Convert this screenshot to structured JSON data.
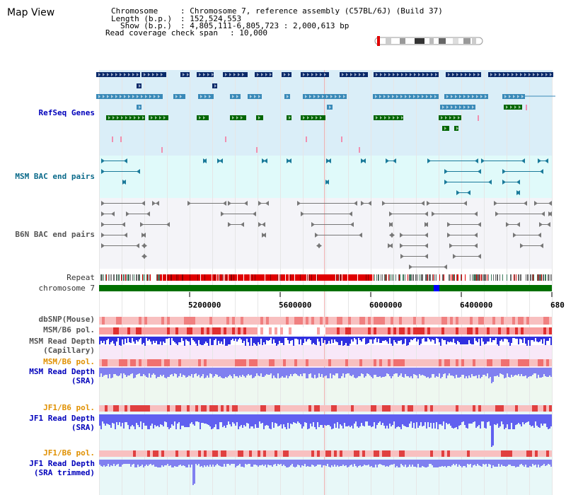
{
  "window": {
    "title": "Map View"
  },
  "info": {
    "chromosome_key": "Chromosome",
    "chromosome_value": ": Chromosome 7, reference assembly (C57BL/6J) (Build 37)",
    "length_key": "Length (b.p.)",
    "length_value": ": 152,524,553",
    "show_key": "Show (b.p.)",
    "show_value": ": 4,805,111-6,805,723 : 2,000,613 bp",
    "coverage_key": "Read coverage check span",
    "coverage_value": ": 10,000"
  },
  "tracks": {
    "refseq": "RefSeq Genes",
    "msm_bac": "MSM BAC end pairs",
    "b6n_bac": "B6N BAC end pairs",
    "repeat": "Repeat",
    "chromosome": "chromosome 7",
    "dbsnp": "dbSNP(Mouse)",
    "msm_b6_pol_1": "MSM/B6 pol.",
    "msm_depth_cap_1": "MSM Read Depth",
    "msm_depth_cap_2": "(Capillary)",
    "msm_b6_pol_2": "MSM/B6 pol.",
    "msm_depth_sra_1": "MSM Read Depth",
    "msm_depth_sra_2": "(SRA)",
    "jf1_pol_1": "JF1/B6 pol.",
    "jf1_depth_sra_1": "JF1 Read Depth",
    "jf1_depth_sra_2": "(SRA)",
    "jf1_pol_2": "JF1/B6 pol.",
    "jf1_depth_trim_1": "JF1 Read Depth",
    "jf1_depth_trim_2": "(SRA trimmed)"
  },
  "axis": {
    "ticks": [
      "5200000",
      "5600000",
      "6000000",
      "6400000",
      "680"
    ]
  },
  "colors": {
    "refseq_bg": "#daeef8",
    "msm_bg": "#e0fafa",
    "b6n_bg": "#f4f4f8",
    "depth_blue": "#2020e0",
    "pol_red": "#e03030",
    "chrom_green": "#007000"
  }
}
